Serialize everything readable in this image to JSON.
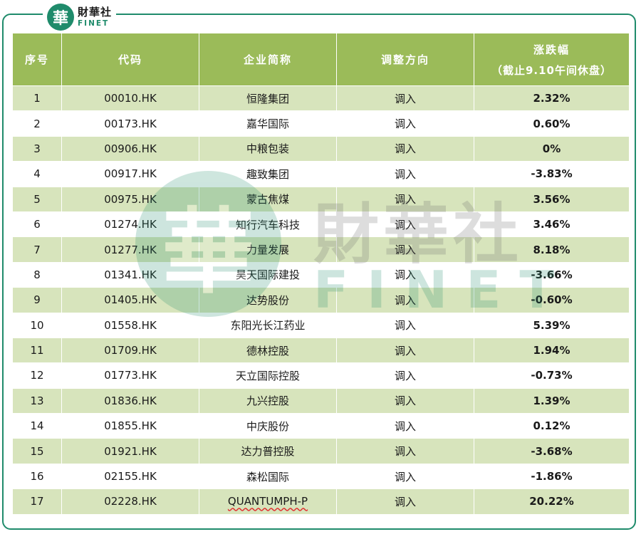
{
  "brand": {
    "mark": "華",
    "name_cn": "財華社",
    "name_en": "FINET"
  },
  "watermark": {
    "mark": "華",
    "cn": "財華社",
    "en": "FINET"
  },
  "colors": {
    "header_bg": "#9bbb59",
    "row_alt_bg": "#d7e4bc",
    "positive": "#c00000",
    "negative": "#111111",
    "brand_green": "#1f8b6b"
  },
  "table": {
    "headers": {
      "no": "序号",
      "code": "代码",
      "name": "企业简称",
      "direction": "调整方向",
      "change": "涨跌幅",
      "change_note": "（截止9.10午间休盘）"
    },
    "rows": [
      {
        "no": "1",
        "code": "00010.HK",
        "name": "恒隆集团",
        "direction": "调入",
        "change": "2.32%",
        "sign": "pos"
      },
      {
        "no": "2",
        "code": "00173.HK",
        "name": "嘉华国际",
        "direction": "调入",
        "change": "0.60%",
        "sign": "pos"
      },
      {
        "no": "3",
        "code": "00906.HK",
        "name": "中粮包装",
        "direction": "调入",
        "change": "0%",
        "sign": "zero"
      },
      {
        "no": "4",
        "code": "00917.HK",
        "name": "趣致集团",
        "direction": "调入",
        "change": "-3.83%",
        "sign": "neg"
      },
      {
        "no": "5",
        "code": "00975.HK",
        "name": "蒙古焦煤",
        "direction": "调入",
        "change": "3.56%",
        "sign": "pos"
      },
      {
        "no": "6",
        "code": "01274.HK",
        "name": "知行汽车科技",
        "direction": "调入",
        "change": "3.46%",
        "sign": "pos"
      },
      {
        "no": "7",
        "code": "01277.HK",
        "name": "力量发展",
        "direction": "调入",
        "change": "8.18%",
        "sign": "pos"
      },
      {
        "no": "8",
        "code": "01341.HK",
        "name": "昊天国际建投",
        "direction": "调入",
        "change": "-3.66%",
        "sign": "neg"
      },
      {
        "no": "9",
        "code": "01405.HK",
        "name": "达势股份",
        "direction": "调入",
        "change": "-0.60%",
        "sign": "neg"
      },
      {
        "no": "10",
        "code": "01558.HK",
        "name": "东阳光长江药业",
        "direction": "调入",
        "change": "5.39%",
        "sign": "pos"
      },
      {
        "no": "11",
        "code": "01709.HK",
        "name": "德林控股",
        "direction": "调入",
        "change": "1.94%",
        "sign": "pos"
      },
      {
        "no": "12",
        "code": "01773.HK",
        "name": "天立国际控股",
        "direction": "调入",
        "change": "-0.73%",
        "sign": "neg"
      },
      {
        "no": "13",
        "code": "01836.HK",
        "name": "九兴控股",
        "direction": "调入",
        "change": "1.39%",
        "sign": "pos"
      },
      {
        "no": "14",
        "code": "01855.HK",
        "name": "中庆股份",
        "direction": "调入",
        "change": "0.12%",
        "sign": "pos"
      },
      {
        "no": "15",
        "code": "01921.HK",
        "name": "达力普控股",
        "direction": "调入",
        "change": "-3.68%",
        "sign": "neg"
      },
      {
        "no": "16",
        "code": "02155.HK",
        "name": "森松国际",
        "direction": "调入",
        "change": "-1.86%",
        "sign": "neg"
      },
      {
        "no": "17",
        "code": "02228.HK",
        "name": "QUANTUMPH-P",
        "direction": "调入",
        "change": "20.22%",
        "sign": "pos"
      }
    ]
  }
}
